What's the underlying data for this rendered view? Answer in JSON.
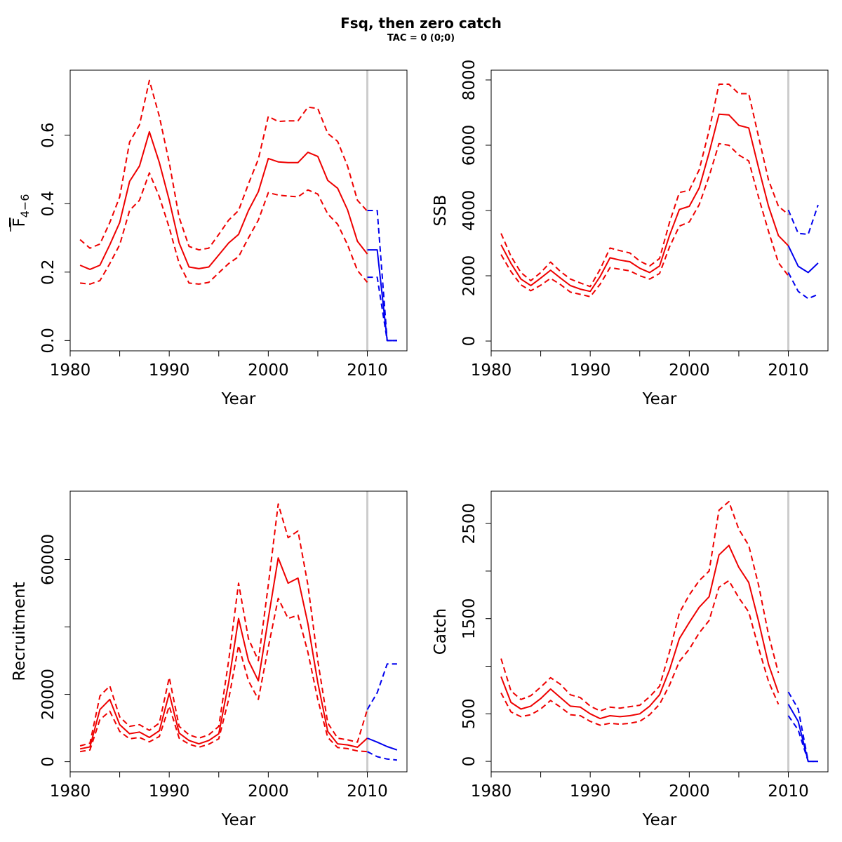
{
  "title": "Fsq, then zero catch",
  "subtitle": "TAC = 0 (0;0)",
  "colors": {
    "history": "#ee0000",
    "forecast": "#0000ee",
    "divider": "#cccccc"
  },
  "chart_data": [
    {
      "type": "line",
      "id": "fbar",
      "ylabel_main": "F",
      "ylabel_sub": "4−6",
      "xlabel": "Year",
      "xlim": [
        1980,
        2014
      ],
      "ylim": [
        -0.03,
        0.79
      ],
      "xticks": [
        1980,
        1990,
        2000,
        2010
      ],
      "yticks": [
        0.0,
        0.2,
        0.4,
        0.6
      ],
      "ytick_labels": [
        "0.0",
        "0.2",
        "0.4",
        "0.6"
      ],
      "divider_year": 2010,
      "series": [
        {
          "role": "history-mid",
          "x": [
            1981,
            1982,
            1983,
            1984,
            1985,
            1986,
            1987,
            1988,
            1989,
            1990,
            1991,
            1992,
            1993,
            1994,
            1995,
            1996,
            1997,
            1998,
            1999,
            2000,
            2001,
            2002,
            2003,
            2004,
            2005,
            2006,
            2007,
            2008,
            2009,
            2010
          ],
          "values": [
            0.22,
            0.208,
            0.22,
            0.28,
            0.345,
            0.465,
            0.51,
            0.61,
            0.52,
            0.41,
            0.285,
            0.215,
            0.21,
            0.215,
            0.25,
            0.285,
            0.31,
            0.38,
            0.435,
            0.532,
            0.522,
            0.52,
            0.52,
            0.55,
            0.538,
            0.468,
            0.445,
            0.382,
            0.29,
            0.253
          ]
        },
        {
          "role": "history-upper",
          "x": [
            1981,
            1982,
            1983,
            1984,
            1985,
            1986,
            1987,
            1988,
            1989,
            1990,
            1991,
            1992,
            1993,
            1994,
            1995,
            1996,
            1997,
            1998,
            1999,
            2000,
            2001,
            2002,
            2003,
            2004,
            2005,
            2006,
            2007,
            2008,
            2009,
            2010
          ],
          "values": [
            0.295,
            0.27,
            0.282,
            0.345,
            0.42,
            0.58,
            0.63,
            0.76,
            0.655,
            0.52,
            0.36,
            0.275,
            0.265,
            0.27,
            0.31,
            0.352,
            0.38,
            0.458,
            0.53,
            0.655,
            0.64,
            0.642,
            0.642,
            0.682,
            0.678,
            0.605,
            0.582,
            0.51,
            0.41,
            0.378
          ]
        },
        {
          "role": "history-lower",
          "x": [
            1981,
            1982,
            1983,
            1984,
            1985,
            1986,
            1987,
            1988,
            1989,
            1990,
            1991,
            1992,
            1993,
            1994,
            1995,
            1996,
            1997,
            1998,
            1999,
            2000,
            2001,
            2002,
            2003,
            2004,
            2005,
            2006,
            2007,
            2008,
            2009,
            2010
          ],
          "values": [
            0.168,
            0.165,
            0.175,
            0.225,
            0.28,
            0.38,
            0.41,
            0.49,
            0.42,
            0.33,
            0.225,
            0.168,
            0.165,
            0.17,
            0.198,
            0.225,
            0.245,
            0.3,
            0.352,
            0.432,
            0.425,
            0.422,
            0.42,
            0.44,
            0.428,
            0.37,
            0.34,
            0.28,
            0.205,
            0.17
          ]
        },
        {
          "role": "forecast-mid",
          "x": [
            2010,
            2011,
            2012,
            2013
          ],
          "values": [
            0.265,
            0.265,
            0.0,
            0.0
          ]
        },
        {
          "role": "forecast-upper",
          "x": [
            2010,
            2011,
            2012,
            2013
          ],
          "values": [
            0.38,
            0.38,
            0.0,
            0.0
          ]
        },
        {
          "role": "forecast-lower",
          "x": [
            2010,
            2011,
            2012,
            2013
          ],
          "values": [
            0.185,
            0.185,
            0.0,
            0.0
          ]
        }
      ]
    },
    {
      "type": "line",
      "id": "ssb",
      "ylabel": "SSB",
      "xlabel": "Year",
      "xlim": [
        1980,
        2014
      ],
      "ylim": [
        -300,
        8300
      ],
      "xticks": [
        1980,
        1990,
        2000,
        2010
      ],
      "yticks": [
        0,
        2000,
        4000,
        6000,
        8000
      ],
      "ytick_labels": [
        "0",
        "2000",
        "4000",
        "6000",
        "8000"
      ],
      "divider_year": 2010,
      "series": [
        {
          "role": "history-mid",
          "x": [
            1981,
            1982,
            1983,
            1984,
            1985,
            1986,
            1987,
            1988,
            1989,
            1990,
            1991,
            1992,
            1993,
            1994,
            1995,
            1996,
            1997,
            1998,
            1999,
            2000,
            2001,
            2002,
            2003,
            2004,
            2005,
            2006,
            2007,
            2008,
            2009,
            2010
          ],
          "values": [
            2950,
            2380,
            1900,
            1700,
            1930,
            2170,
            1930,
            1700,
            1590,
            1520,
            1980,
            2550,
            2480,
            2430,
            2230,
            2100,
            2300,
            3230,
            4030,
            4130,
            4690,
            5770,
            6950,
            6930,
            6610,
            6530,
            5300,
            4130,
            3230,
            2920
          ]
        },
        {
          "role": "history-upper",
          "x": [
            1981,
            1982,
            1983,
            1984,
            1985,
            1986,
            1987,
            1988,
            1989,
            1990,
            1991,
            1992,
            1993,
            1994,
            1995,
            1996,
            1997,
            1998,
            1999,
            2000,
            2001,
            2002,
            2003,
            2004,
            2005,
            2006,
            2007,
            2008,
            2009,
            2010
          ],
          "values": [
            3300,
            2600,
            2100,
            1850,
            2100,
            2420,
            2130,
            1900,
            1780,
            1670,
            2200,
            2850,
            2770,
            2700,
            2450,
            2300,
            2530,
            3630,
            4550,
            4620,
            5250,
            6450,
            7870,
            7870,
            7580,
            7580,
            6250,
            4930,
            4130,
            3880
          ]
        },
        {
          "role": "history-lower",
          "x": [
            1981,
            1982,
            1983,
            1984,
            1985,
            1986,
            1987,
            1988,
            1989,
            1990,
            1991,
            1992,
            1993,
            1994,
            1995,
            1996,
            1997,
            1998,
            1999,
            2000,
            2001,
            2002,
            2003,
            2004,
            2005,
            2006,
            2007,
            2008,
            2009,
            2010
          ],
          "values": [
            2650,
            2130,
            1720,
            1540,
            1710,
            1920,
            1730,
            1500,
            1430,
            1360,
            1740,
            2250,
            2200,
            2150,
            2000,
            1900,
            2070,
            2880,
            3520,
            3650,
            4180,
            5050,
            6050,
            6000,
            5700,
            5520,
            4400,
            3360,
            2400,
            2000
          ]
        },
        {
          "role": "forecast-mid",
          "x": [
            2010,
            2011,
            2012,
            2013
          ],
          "values": [
            2920,
            2290,
            2100,
            2390
          ]
        },
        {
          "role": "forecast-upper",
          "x": [
            2010,
            2011,
            2012,
            2013
          ],
          "values": [
            4020,
            3300,
            3270,
            4170
          ]
        },
        {
          "role": "forecast-lower",
          "x": [
            2010,
            2011,
            2012,
            2013
          ],
          "values": [
            2100,
            1520,
            1300,
            1430
          ]
        }
      ]
    },
    {
      "type": "line",
      "id": "recruitment",
      "ylabel": "Recruitment",
      "xlabel": "Year",
      "xlim": [
        1980,
        2014
      ],
      "ylim": [
        -3000,
        80300
      ],
      "xticks": [
        1980,
        1990,
        2000,
        2010
      ],
      "yticks": [
        0,
        20000,
        40000,
        60000
      ],
      "ytick_labels": [
        "0",
        "20000",
        "",
        "60000"
      ],
      "divider_year": 2010,
      "series": [
        {
          "role": "history-mid",
          "x": [
            1981,
            1982,
            1983,
            1984,
            1985,
            1986,
            1987,
            1988,
            1989,
            1990,
            1991,
            1992,
            1993,
            1994,
            1995,
            1996,
            1997,
            1998,
            1999,
            2000,
            2001,
            2002,
            2003,
            2004,
            2005,
            2006,
            2007,
            2008,
            2009,
            2010
          ],
          "values": [
            3800,
            4400,
            15500,
            18500,
            11000,
            8300,
            8800,
            7200,
            9200,
            20300,
            8500,
            6300,
            5300,
            6300,
            8300,
            23500,
            42500,
            30000,
            24000,
            42500,
            60500,
            53000,
            54500,
            41000,
            23500,
            9000,
            5300,
            5000,
            4300,
            7000
          ]
        },
        {
          "role": "history-upper",
          "x": [
            1981,
            1982,
            1983,
            1984,
            1985,
            1986,
            1987,
            1988,
            1989,
            1990,
            1991,
            1992,
            1993,
            1994,
            1995,
            1996,
            1997,
            1998,
            1999,
            2000,
            2001,
            2002,
            2003,
            2004,
            2005,
            2006,
            2007,
            2008,
            2009,
            2010
          ],
          "values": [
            4700,
            5500,
            19500,
            22500,
            13300,
            10500,
            11000,
            9300,
            11500,
            25000,
            10500,
            8000,
            7000,
            8000,
            10500,
            30000,
            53000,
            36500,
            30000,
            52500,
            76500,
            66500,
            68500,
            52500,
            30000,
            11500,
            7000,
            6500,
            5800,
            15500
          ]
        },
        {
          "role": "history-lower",
          "x": [
            1981,
            1982,
            1983,
            1984,
            1985,
            1986,
            1987,
            1988,
            1989,
            1990,
            1991,
            1992,
            1993,
            1994,
            1995,
            1996,
            1997,
            1998,
            1999,
            2000,
            2001,
            2002,
            2003,
            2004,
            2005,
            2006,
            2007,
            2008,
            2009,
            2010
          ],
          "values": [
            3000,
            3500,
            12500,
            15000,
            9000,
            6800,
            7200,
            5900,
            7500,
            16500,
            7000,
            5200,
            4300,
            5200,
            6800,
            18500,
            34500,
            24000,
            18500,
            34000,
            48500,
            42500,
            43500,
            32500,
            18500,
            7200,
            4200,
            3900,
            3200,
            3000
          ]
        },
        {
          "role": "forecast-mid",
          "x": [
            2010,
            2011,
            2012,
            2013
          ],
          "values": [
            7000,
            5800,
            4500,
            3500
          ]
        },
        {
          "role": "forecast-upper",
          "x": [
            2010,
            2011,
            2012,
            2013
          ],
          "values": [
            15500,
            20500,
            29000,
            29000
          ]
        },
        {
          "role": "forecast-lower",
          "x": [
            2010,
            2011,
            2012,
            2013
          ],
          "values": [
            3000,
            1500,
            800,
            500
          ]
        }
      ]
    },
    {
      "type": "line",
      "id": "catch",
      "ylabel": "Catch",
      "xlabel": "Year",
      "xlim": [
        1980,
        2014
      ],
      "ylim": [
        -110,
        2840
      ],
      "xticks": [
        1980,
        1990,
        2000,
        2010
      ],
      "yticks": [
        0,
        500,
        1000,
        1500,
        2000,
        2500
      ],
      "ytick_labels": [
        "0",
        "500",
        "",
        "1500",
        "",
        "2500"
      ],
      "divider_year": 2010,
      "series": [
        {
          "role": "history-mid",
          "x": [
            1981,
            1982,
            1983,
            1984,
            1985,
            1986,
            1987,
            1988,
            1989,
            1990,
            1991,
            1992,
            1993,
            1994,
            1995,
            1996,
            1997,
            1998,
            1999,
            2000,
            2001,
            2002,
            2003,
            2004,
            2005,
            2006,
            2007,
            2008,
            2009
          ],
          "values": [
            890,
            620,
            550,
            580,
            660,
            760,
            670,
            580,
            570,
            500,
            450,
            480,
            470,
            480,
            500,
            580,
            700,
            960,
            1290,
            1460,
            1620,
            1730,
            2170,
            2270,
            2040,
            1880,
            1470,
            1020,
            720
          ]
        },
        {
          "role": "history-upper",
          "x": [
            1981,
            1982,
            1983,
            1984,
            1985,
            1986,
            1987,
            1988,
            1989,
            1990,
            1991,
            1992,
            1993,
            1994,
            1995,
            1996,
            1997,
            1998,
            1999,
            2000,
            2001,
            2002,
            2003,
            2004,
            2005,
            2006,
            2007,
            2008,
            2009
          ],
          "values": [
            1080,
            740,
            650,
            690,
            780,
            880,
            810,
            700,
            670,
            580,
            530,
            570,
            560,
            575,
            590,
            680,
            790,
            1150,
            1560,
            1750,
            1900,
            2000,
            2640,
            2730,
            2440,
            2270,
            1850,
            1330,
            930
          ]
        },
        {
          "role": "history-lower",
          "x": [
            1981,
            1982,
            1983,
            1984,
            1985,
            1986,
            1987,
            1988,
            1989,
            1990,
            1991,
            1992,
            1993,
            1994,
            1995,
            1996,
            1997,
            1998,
            1999,
            2000,
            2001,
            2002,
            2003,
            2004,
            2005,
            2006,
            2007,
            2008,
            2009
          ],
          "values": [
            720,
            520,
            470,
            490,
            550,
            640,
            570,
            490,
            480,
            420,
            380,
            400,
            390,
            400,
            420,
            490,
            600,
            800,
            1050,
            1180,
            1350,
            1480,
            1830,
            1900,
            1720,
            1570,
            1190,
            840,
            600
          ]
        },
        {
          "role": "forecast-mid",
          "x": [
            2010,
            2011,
            2012,
            2013
          ],
          "values": [
            600,
            420,
            0,
            0
          ]
        },
        {
          "role": "forecast-upper",
          "x": [
            2010,
            2011,
            2012,
            2013
          ],
          "values": [
            730,
            550,
            0,
            0
          ]
        },
        {
          "role": "forecast-lower",
          "x": [
            2010,
            2011,
            2012,
            2013
          ],
          "values": [
            480,
            330,
            0,
            0
          ]
        }
      ]
    }
  ]
}
